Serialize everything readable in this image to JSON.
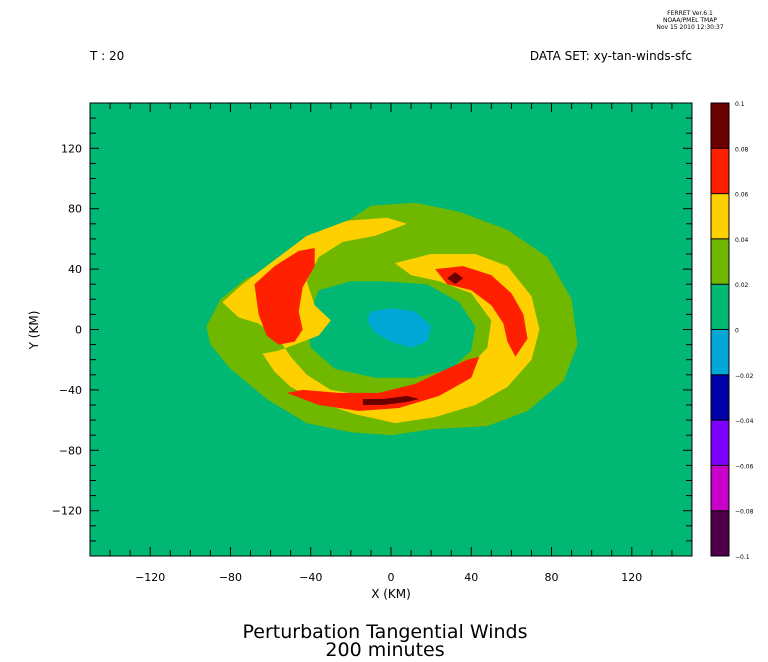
{
  "header": {
    "software_lines": [
      "FERRET Ver.6.1",
      "NOAA/PMEL TMAP",
      "Nov 15 2010 12:30:37"
    ],
    "time_label": "T : 20",
    "dataset_label": "DATA SET: xy-tan-winds-sfc"
  },
  "chart_data": {
    "type": "heatmap",
    "title": "Perturbation Tangential Winds",
    "subtitle": "200 minutes",
    "xlabel": "X (KM)",
    "ylabel": "Y (KM)",
    "xlim": [
      -150,
      150
    ],
    "ylim": [
      -150,
      150
    ],
    "x_ticks": [
      -120,
      -80,
      -40,
      0,
      40,
      80,
      120
    ],
    "y_ticks": [
      -120,
      -80,
      -40,
      0,
      40,
      80,
      120
    ],
    "x_tick_labels": [
      "−120",
      "−80",
      "−40",
      "0",
      "40",
      "80",
      "120"
    ],
    "y_tick_labels": [
      "−120",
      "−80",
      "−40",
      "0",
      "40",
      "80",
      "120"
    ],
    "colorbar": {
      "levels": [
        -0.1,
        -0.08,
        -0.06,
        -0.04,
        -0.02,
        0,
        0.02,
        0.04,
        0.06,
        0.08,
        0.1
      ],
      "level_labels": [
        "−0.1",
        "−0.08",
        "−0.06",
        "−0.04",
        "−0.02",
        "0",
        "0.02",
        "0.04",
        "0.06",
        "0.08",
        "0.1"
      ],
      "colors": [
        "#4d0049",
        "#c800c8",
        "#8000ff",
        "#0000a8",
        "#00a8d8",
        "#00b874",
        "#70b800",
        "#ffd000",
        "#ff2000",
        "#6a0000"
      ]
    },
    "background_color": "#00b874",
    "regions": [
      {
        "level": "0.02-0.04",
        "color": "#70b800",
        "points": [
          [
            -92,
            2
          ],
          [
            -85,
            20
          ],
          [
            -72,
            34
          ],
          [
            -56,
            42
          ],
          [
            -42,
            56
          ],
          [
            -26,
            68
          ],
          [
            -10,
            82
          ],
          [
            12,
            84
          ],
          [
            34,
            78
          ],
          [
            58,
            66
          ],
          [
            78,
            48
          ],
          [
            90,
            20
          ],
          [
            93,
            -10
          ],
          [
            86,
            -34
          ],
          [
            68,
            -54
          ],
          [
            48,
            -64
          ],
          [
            20,
            -66
          ],
          [
            0,
            -70
          ],
          [
            -20,
            -68
          ],
          [
            -42,
            -62
          ],
          [
            -62,
            -46
          ],
          [
            -80,
            -26
          ],
          [
            -90,
            -10
          ]
        ]
      },
      {
        "level": "0-0.02",
        "color": "#00b874",
        "points": [
          [
            -36,
            26
          ],
          [
            -20,
            32
          ],
          [
            -4,
            32
          ],
          [
            18,
            30
          ],
          [
            34,
            18
          ],
          [
            42,
            2
          ],
          [
            40,
            -14
          ],
          [
            30,
            -26
          ],
          [
            12,
            -32
          ],
          [
            -8,
            -32
          ],
          [
            -28,
            -26
          ],
          [
            -40,
            -12
          ],
          [
            -42,
            6
          ]
        ]
      },
      {
        "level": "0.04-0.06",
        "color": "#ffd000",
        "points": [
          [
            -84,
            18
          ],
          [
            -74,
            30
          ],
          [
            -58,
            46
          ],
          [
            -42,
            62
          ],
          [
            -22,
            72
          ],
          [
            -2,
            74
          ],
          [
            8,
            70
          ],
          [
            -8,
            62
          ],
          [
            -24,
            58
          ],
          [
            -36,
            48
          ],
          [
            -42,
            32
          ],
          [
            -38,
            16
          ],
          [
            -30,
            6
          ],
          [
            -36,
            -4
          ],
          [
            -48,
            -10
          ],
          [
            -56,
            -14
          ],
          [
            -64,
            -16
          ],
          [
            -58,
            -28
          ],
          [
            -50,
            -38
          ],
          [
            -36,
            -48
          ],
          [
            -18,
            -56
          ],
          [
            2,
            -62
          ],
          [
            22,
            -58
          ],
          [
            42,
            -50
          ],
          [
            58,
            -38
          ],
          [
            70,
            -20
          ],
          [
            74,
            0
          ],
          [
            70,
            22
          ],
          [
            58,
            42
          ],
          [
            42,
            50
          ],
          [
            20,
            50
          ],
          [
            2,
            44
          ],
          [
            10,
            36
          ],
          [
            24,
            32
          ],
          [
            40,
            24
          ],
          [
            50,
            6
          ],
          [
            48,
            -12
          ],
          [
            38,
            -26
          ],
          [
            22,
            -40
          ],
          [
            6,
            -44
          ],
          [
            -12,
            -44
          ],
          [
            -30,
            -40
          ],
          [
            -42,
            -30
          ],
          [
            -50,
            -18
          ],
          [
            -56,
            -6
          ],
          [
            -66,
            4
          ],
          [
            -76,
            8
          ]
        ]
      },
      {
        "level": "0.06-0.08",
        "color": "#ff2000",
        "points": [
          [
            -68,
            30
          ],
          [
            -58,
            42
          ],
          [
            -46,
            52
          ],
          [
            -38,
            54
          ],
          [
            -38,
            42
          ],
          [
            -44,
            28
          ],
          [
            -46,
            12
          ],
          [
            -44,
            0
          ],
          [
            -48,
            -8
          ],
          [
            -56,
            -10
          ],
          [
            -62,
            -4
          ],
          [
            -66,
            10
          ]
        ]
      },
      {
        "level": "0.06-0.08",
        "color": "#ff2000",
        "points": [
          [
            22,
            40
          ],
          [
            36,
            42
          ],
          [
            50,
            36
          ],
          [
            60,
            24
          ],
          [
            66,
            10
          ],
          [
            68,
            -6
          ],
          [
            62,
            -18
          ],
          [
            58,
            -8
          ],
          [
            56,
            4
          ],
          [
            50,
            16
          ],
          [
            40,
            26
          ],
          [
            28,
            30
          ]
        ]
      },
      {
        "level": "0.06-0.08",
        "color": "#ff2000",
        "points": [
          [
            -52,
            -42
          ],
          [
            -36,
            -50
          ],
          [
            -16,
            -54
          ],
          [
            4,
            -52
          ],
          [
            24,
            -44
          ],
          [
            40,
            -32
          ],
          [
            44,
            -18
          ],
          [
            38,
            -20
          ],
          [
            28,
            -26
          ],
          [
            12,
            -36
          ],
          [
            -6,
            -42
          ],
          [
            -26,
            -42
          ],
          [
            -44,
            -40
          ]
        ]
      },
      {
        "level": "0-(-0.02)",
        "color": "#00a8d8",
        "points": [
          [
            -10,
            12
          ],
          [
            0,
            14
          ],
          [
            12,
            12
          ],
          [
            20,
            2
          ],
          [
            18,
            -8
          ],
          [
            10,
            -12
          ],
          [
            0,
            -8
          ],
          [
            -8,
            -2
          ],
          [
            -12,
            6
          ]
        ]
      },
      {
        "level": "0.08-0.1",
        "color": "#6a0000",
        "points": [
          [
            28,
            34
          ],
          [
            32,
            38
          ],
          [
            36,
            34
          ],
          [
            32,
            30
          ]
        ]
      },
      {
        "level": "0.08-0.1",
        "color": "#6a0000",
        "points": [
          [
            -14,
            -50
          ],
          [
            -4,
            -50
          ],
          [
            8,
            -48
          ],
          [
            14,
            -46
          ],
          [
            8,
            -44
          ],
          [
            -4,
            -46
          ],
          [
            -14,
            -46
          ]
        ]
      }
    ]
  }
}
